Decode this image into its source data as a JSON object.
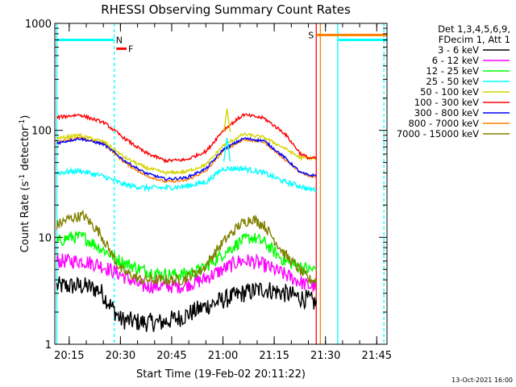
{
  "chart_data": {
    "type": "line",
    "title": "RHESSI Observing Summary Count Rates",
    "xlabel": "Start Time (19-Feb-02 20:11:22)",
    "ylabel_main": "Count Rate (s",
    "ylabel_sup1": "-1",
    "ylabel_mid": " detector",
    "ylabel_sup2": "-1",
    "ylabel_end": ")",
    "y_scale": "log",
    "ylim": [
      1,
      1000
    ],
    "xlim_minutes": [
      20.18,
      21.8
    ],
    "x_unit": "time (hh:mm)",
    "x_ticks": [
      {
        "label": "20:15",
        "t": 20.25
      },
      {
        "label": "20:30",
        "t": 20.5
      },
      {
        "label": "20:45",
        "t": 20.75
      },
      {
        "label": "21:00",
        "t": 21.0
      },
      {
        "label": "21:15",
        "t": 21.25
      },
      {
        "label": "21:30",
        "t": 21.5
      },
      {
        "label": "21:45",
        "t": 21.75
      }
    ],
    "y_ticks": [
      {
        "label": "1",
        "v": 1
      },
      {
        "label": "10",
        "v": 10
      },
      {
        "label": "100",
        "v": 100
      },
      {
        "label": "1000",
        "v": 1000
      }
    ],
    "legend_header": [
      "Det 1,3,4,5,6,9,",
      "FDecim 1, Att 1"
    ],
    "legend": [
      {
        "label": "3 - 6 keV",
        "color": "#000000"
      },
      {
        "label": "6 - 12 keV",
        "color": "#ff00ff"
      },
      {
        "label": "12 - 25 keV",
        "color": "#00ff00"
      },
      {
        "label": "25 - 50 keV",
        "color": "#00ffff"
      },
      {
        "label": "50 - 100 keV",
        "color": "#d4d400"
      },
      {
        "label": "100 - 300 keV",
        "color": "#ff0000"
      },
      {
        "label": "300 - 800 keV",
        "color": "#0000ff"
      },
      {
        "label": "800 - 7000 keV",
        "color": "#ff8000"
      },
      {
        "label": "7000 - 15000 keV",
        "color": "#808000"
      }
    ],
    "series": [
      {
        "name": "100 - 300 keV",
        "color": "#ff0000",
        "t": [
          20.19,
          20.3,
          20.42,
          20.52,
          20.62,
          20.72,
          20.82,
          20.92,
          21.0,
          21.1,
          21.2,
          21.3,
          21.38,
          21.42,
          21.455
        ],
        "v": [
          132,
          140,
          118,
          84,
          62,
          52,
          53,
          64,
          100,
          140,
          130,
          94,
          60,
          55,
          55
        ]
      },
      {
        "name": "50 - 100 keV",
        "color": "#d4d400",
        "t": [
          20.19,
          20.3,
          20.42,
          20.52,
          20.62,
          20.72,
          20.82,
          20.92,
          21.0,
          21.1,
          21.2,
          21.3,
          21.38,
          21.42,
          21.455
        ],
        "v": [
          84,
          90,
          78,
          56,
          45,
          40,
          41,
          48,
          72,
          92,
          86,
          68,
          55,
          55,
          55
        ]
      },
      {
        "name": "300 - 800 keV",
        "color": "#0000ff",
        "t": [
          20.19,
          20.3,
          20.42,
          20.52,
          20.62,
          20.72,
          20.82,
          20.92,
          21.0,
          21.1,
          21.2,
          21.3,
          21.38,
          21.42,
          21.455
        ],
        "v": [
          76,
          84,
          74,
          52,
          40,
          35,
          36,
          44,
          66,
          84,
          80,
          56,
          40,
          38,
          38
        ]
      },
      {
        "name": "800 - 7000 keV",
        "color": "#ff8000",
        "t": [
          20.19,
          20.3,
          20.42,
          20.52,
          20.62,
          20.72,
          20.82,
          20.92,
          21.0,
          21.1,
          21.2,
          21.3,
          21.38,
          21.42,
          21.455
        ],
        "v": [
          78,
          85,
          75,
          50,
          38,
          33,
          34,
          42,
          64,
          82,
          78,
          54,
          40,
          37,
          37
        ]
      },
      {
        "name": "25 - 50 keV",
        "color": "#00ffff",
        "t": [
          20.19,
          20.3,
          20.42,
          20.52,
          20.62,
          20.72,
          20.82,
          20.92,
          21.0,
          21.1,
          21.2,
          21.3,
          21.38,
          21.42,
          21.455
        ],
        "v": [
          40,
          42,
          37,
          31,
          29,
          29,
          30,
          33,
          44,
          44,
          40,
          33,
          30,
          28,
          28
        ]
      },
      {
        "name": "7000 - 15000 keV",
        "color": "#808000",
        "t": [
          20.19,
          20.25,
          20.32,
          20.4,
          20.5,
          20.6,
          20.7,
          20.8,
          20.9,
          21.0,
          21.08,
          21.14,
          21.2,
          21.3,
          21.42,
          21.455
        ],
        "v": [
          13,
          15,
          16,
          11,
          5,
          4,
          4,
          4,
          5,
          9,
          13,
          15,
          13,
          7,
          4,
          4
        ]
      },
      {
        "name": "12 - 25 keV",
        "color": "#00ff00",
        "t": [
          20.19,
          20.25,
          20.32,
          20.4,
          20.5,
          20.6,
          20.7,
          20.8,
          20.9,
          21.0,
          21.08,
          21.14,
          21.2,
          21.3,
          21.42,
          21.455
        ],
        "v": [
          9,
          10,
          10,
          8,
          6,
          5,
          4.5,
          4.5,
          5,
          7,
          9,
          10,
          9,
          6,
          5,
          5
        ]
      },
      {
        "name": "6 - 12 keV",
        "color": "#ff00ff",
        "t": [
          20.19,
          20.25,
          20.32,
          20.4,
          20.5,
          20.6,
          20.7,
          20.8,
          20.9,
          21.0,
          21.08,
          21.14,
          21.2,
          21.3,
          21.42,
          21.455
        ],
        "v": [
          6,
          6,
          6,
          5.5,
          4.5,
          3.5,
          3.5,
          3.5,
          4,
          5,
          6,
          6,
          5.5,
          4.5,
          3.5,
          3.5
        ]
      },
      {
        "name": "3 - 6 keV",
        "color": "#000000",
        "t": [
          20.19,
          20.25,
          20.32,
          20.4,
          20.46,
          20.5,
          20.6,
          20.7,
          20.8,
          20.9,
          21.0,
          21.1,
          21.2,
          21.3,
          21.42,
          21.455
        ],
        "v": [
          3.5,
          3.5,
          3.5,
          3.2,
          2.2,
          1.7,
          1.6,
          1.6,
          1.8,
          2.2,
          2.6,
          3.0,
          3.3,
          3.0,
          2.6,
          2.4
        ]
      }
    ],
    "flags": [
      {
        "label": "N",
        "color": "#00ffff",
        "t_start": 20.19,
        "t_end": 20.47,
        "v": 700
      },
      {
        "label": "F",
        "color": "#ff0000",
        "t_start": 20.48,
        "t_end": 20.53,
        "v": 580
      },
      {
        "label": "S",
        "color": "#ff8000",
        "t_start": 21.455,
        "t_end": 21.8,
        "v": 780
      },
      {
        "label": "",
        "color": "#00ffff",
        "t_start": 21.56,
        "t_end": 21.8,
        "v": 700
      }
    ],
    "vlines": [
      {
        "t": 20.19,
        "color": "#00ffff",
        "style": "solid"
      },
      {
        "t": 20.47,
        "color": "#00ffff",
        "style": "dashed"
      },
      {
        "t": 21.455,
        "color": "#ff0000",
        "style": "solid"
      },
      {
        "t": 21.475,
        "color": "#ff8000",
        "style": "solid"
      },
      {
        "t": 21.56,
        "color": "#00ffff",
        "style": "solid"
      },
      {
        "t": 21.785,
        "color": "#00ffff",
        "style": "dashed"
      }
    ],
    "footer_stamp": "13-Oct-2021 16:00"
  }
}
